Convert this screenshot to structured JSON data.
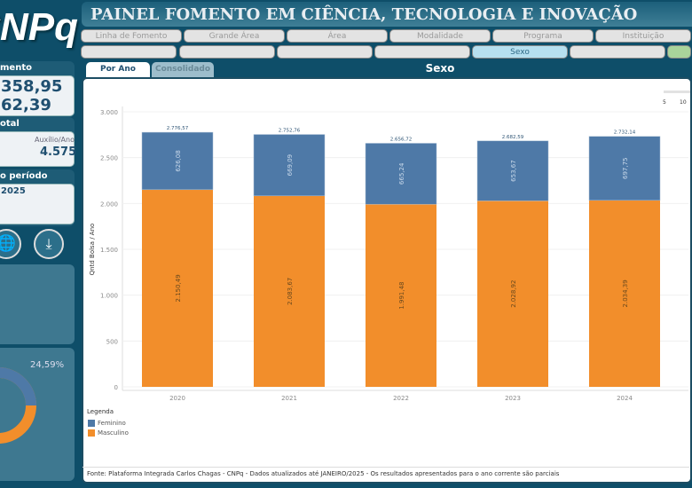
{
  "logo": "CNPq",
  "header": {
    "title": "PAINEL FOMENTO EM CIÊNCIA, TECNOLOGIA E INOVAÇÃO"
  },
  "filters_row1": [
    "Linha de Fomento",
    "Grande Área",
    "Área",
    "Modalidade",
    "Programa",
    "Instituição"
  ],
  "filters_row2": [
    "",
    "",
    "",
    "",
    "Sexo",
    "",
    ""
  ],
  "tabs": {
    "active": "Por Ano",
    "inactive": "Consolidado",
    "section_title": "Sexo"
  },
  "sidebar": {
    "investment_title": "mento",
    "investment_value1": "358,95",
    "investment_value2": "62,39",
    "total_title": "otal",
    "aux_label": "Auxílio/Ano",
    "aux_value": "4.575",
    "period_title": "o período",
    "period_value": "2025",
    "donut_label": "24,59%",
    "icons": [
      "globe-icon",
      "download-icon"
    ]
  },
  "slider_ticks": [
    "5",
    "10"
  ],
  "colors": {
    "feminino": "#4e79a7",
    "masculino": "#f28e2b",
    "bg": "#0e4e69"
  },
  "chart_data": {
    "type": "bar",
    "stacked": true,
    "categories": [
      "2020",
      "2021",
      "2022",
      "2023",
      "2024"
    ],
    "series": [
      {
        "name": "Masculino",
        "values": [
          2150.49,
          2083.67,
          1991.48,
          2028.92,
          2034.39
        ],
        "labels": [
          "2.150,49",
          "2.083,67",
          "1.991,48",
          "2.028,92",
          "2.034,39"
        ]
      },
      {
        "name": "Feminino",
        "values": [
          626.08,
          669.09,
          665.24,
          653.67,
          697.75
        ],
        "labels": [
          "626,08",
          "669,09",
          "665,24",
          "653,67",
          "697,75"
        ]
      }
    ],
    "totals": [
      "2.776,57",
      "2.752,76",
      "2.656,72",
      "2.682,59",
      "2.732,14"
    ],
    "ylabel": "Qntd Bolsa / Ano",
    "ylim": [
      0,
      3000
    ],
    "yticks": [
      0,
      500,
      1000,
      1500,
      2000,
      2500,
      3000
    ],
    "ytick_labels": [
      "0",
      "500",
      "1.000",
      "1.500",
      "2.000",
      "2.500",
      "3.000"
    ],
    "legend": {
      "title": "Legenda",
      "entries": [
        "Feminino",
        "Masculino"
      ]
    }
  },
  "footer": "Fonte: Plataforma Integrada Carlos Chagas - CNPq - Dados atualizados até JANEIRO/2025 - Os resultados apresentados para o ano corrente são parciais"
}
